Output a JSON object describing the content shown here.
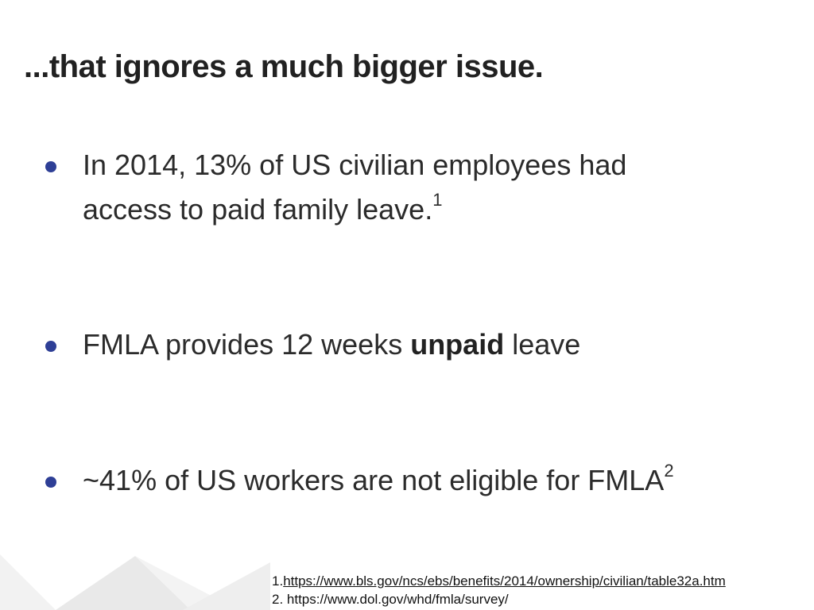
{
  "slide": {
    "title": "...that ignores a much bigger issue."
  },
  "bullets": [
    {
      "line1": "In 2014, 13% of US civilian employees had",
      "line2": "access to paid family leave.",
      "sup": "1"
    },
    {
      "pre": "FMLA provides 12 weeks ",
      "bold": "unpaid",
      "post": " leave"
    },
    {
      "text": "~41% of US workers are not eligible for FMLA",
      "sup": "2"
    }
  ],
  "footnotes": [
    {
      "num": "1.",
      "url": "https://www.bls.gov/ncs/ebs/benefits/2014/ownership/civilian/table32a.htm"
    },
    {
      "num": "2. ",
      "url": "https://www.dol.gov/whd/fmla/survey/"
    }
  ],
  "colors": {
    "bullet": "#2e3f96",
    "text": "#212121",
    "deco": "#ececec"
  }
}
